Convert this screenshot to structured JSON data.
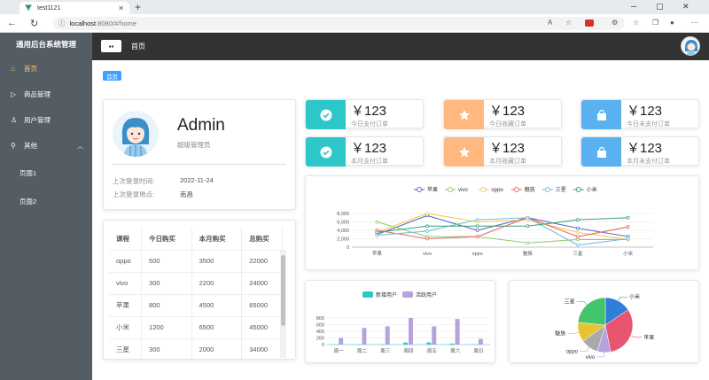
{
  "browser": {
    "tab_title": "test1121",
    "url_host": "localhost",
    "url_path": ":8080/#/home"
  },
  "sidebar": {
    "brand": "通用后台系统管理",
    "items": [
      {
        "label": "首页",
        "icon": "home-icon",
        "active": true
      },
      {
        "label": "商品管理",
        "icon": "video-play-icon"
      },
      {
        "label": "用户管理",
        "icon": "user-icon"
      },
      {
        "label": "其他",
        "icon": "location-icon"
      }
    ],
    "sub_items": [
      "页面1",
      "页面2"
    ]
  },
  "header": {
    "title": "首页",
    "menu_icon": "menu-icon"
  },
  "breadcrumb": {
    "tag": "首页"
  },
  "user": {
    "name": "Admin",
    "role": "超级管理员",
    "last_login_time_label": "上次登录时间:",
    "last_login_time": "2022-11-24",
    "last_login_place_label": "上次登录地点:",
    "last_login_place": "南昌"
  },
  "table": {
    "headers": [
      "课程",
      "今日购买",
      "本月购买",
      "总购买"
    ],
    "rows": [
      [
        "oppo",
        "500",
        "3500",
        "22000"
      ],
      [
        "vivo",
        "300",
        "2200",
        "24000"
      ],
      [
        "苹果",
        "800",
        "4500",
        "65000"
      ],
      [
        "小米",
        "1200",
        "6500",
        "45000"
      ],
      [
        "三星",
        "300",
        "2000",
        "34000"
      ]
    ]
  },
  "orders": [
    {
      "value": "￥123",
      "label": "今日支付订单",
      "icon": "check-circle-icon",
      "color": "#2ec7c9"
    },
    {
      "value": "￥123",
      "label": "今日收藏订单",
      "icon": "star-icon",
      "color": "#ffb980"
    },
    {
      "value": "￥123",
      "label": "今日未支付订单",
      "icon": "shopping-bag-icon",
      "color": "#5ab1ef"
    },
    {
      "value": "￥123",
      "label": "本月支付订单",
      "icon": "check-circle-icon",
      "color": "#2ec7c9"
    },
    {
      "value": "￥123",
      "label": "本月收藏订单",
      "icon": "star-icon",
      "color": "#ffb980"
    },
    {
      "value": "￥123",
      "label": "本月未支付订单",
      "icon": "shopping-bag-icon",
      "color": "#5ab1ef"
    }
  ],
  "chart_data": [
    {
      "type": "line",
      "categories": [
        "苹果",
        "vivo",
        "oppo",
        "魅族",
        "三星",
        "小米"
      ],
      "yticks": [
        0,
        2000,
        4000,
        6000,
        8000
      ],
      "ytick_labels": [
        "0",
        "2,000",
        "4,000",
        "6,000",
        "8,000"
      ],
      "ylim": [
        0,
        8000
      ],
      "legend_position": "top",
      "series": [
        {
          "name": "苹果",
          "color": "#5470c6",
          "values": [
            3000,
            7500,
            4000,
            7000,
            4500,
            2500
          ]
        },
        {
          "name": "vivo",
          "color": "#91cc75",
          "values": [
            6000,
            2500,
            2500,
            1000,
            1800,
            1800
          ]
        },
        {
          "name": "oppo",
          "color": "#fac858",
          "values": [
            3500,
            8000,
            6000,
            6500,
            3500,
            1800
          ]
        },
        {
          "name": "魅族",
          "color": "#ee6666",
          "values": [
            4000,
            2000,
            2500,
            7000,
            2500,
            4800
          ]
        },
        {
          "name": "三星",
          "color": "#73c0de",
          "values": [
            2800,
            3800,
            6500,
            7000,
            500,
            2000
          ]
        },
        {
          "name": "小米",
          "color": "#3ba272",
          "values": [
            3500,
            5000,
            5000,
            5000,
            6500,
            7000
          ]
        }
      ]
    },
    {
      "type": "bar",
      "categories": [
        "周一",
        "周二",
        "周三",
        "周四",
        "周五",
        "周六",
        "周日"
      ],
      "yticks": [
        0,
        200,
        400,
        600,
        800
      ],
      "ylim": [
        0,
        800
      ],
      "legend_position": "top",
      "series": [
        {
          "name": "新增用户",
          "color": "#2ec7c9",
          "values": [
            5,
            10,
            12,
            60,
            65,
            30,
            10
          ]
        },
        {
          "name": "活跃用户",
          "color": "#b6a2de",
          "values": [
            200,
            500,
            550,
            800,
            550,
            770,
            170
          ]
        }
      ]
    },
    {
      "type": "pie",
      "series": [
        {
          "name": "小米",
          "value": 2999,
          "color": "#2f7ed8"
        },
        {
          "name": "苹果",
          "value": 5999,
          "color": "#e8556f"
        },
        {
          "name": "vivo",
          "value": 1500,
          "color": "#b6a2de"
        },
        {
          "name": "oppo",
          "value": 1999,
          "color": "#aaaaaa"
        },
        {
          "name": "魅族",
          "value": 2200,
          "color": "#e9c231"
        },
        {
          "name": "三星",
          "value": 4500,
          "color": "#45c56b"
        }
      ]
    }
  ]
}
